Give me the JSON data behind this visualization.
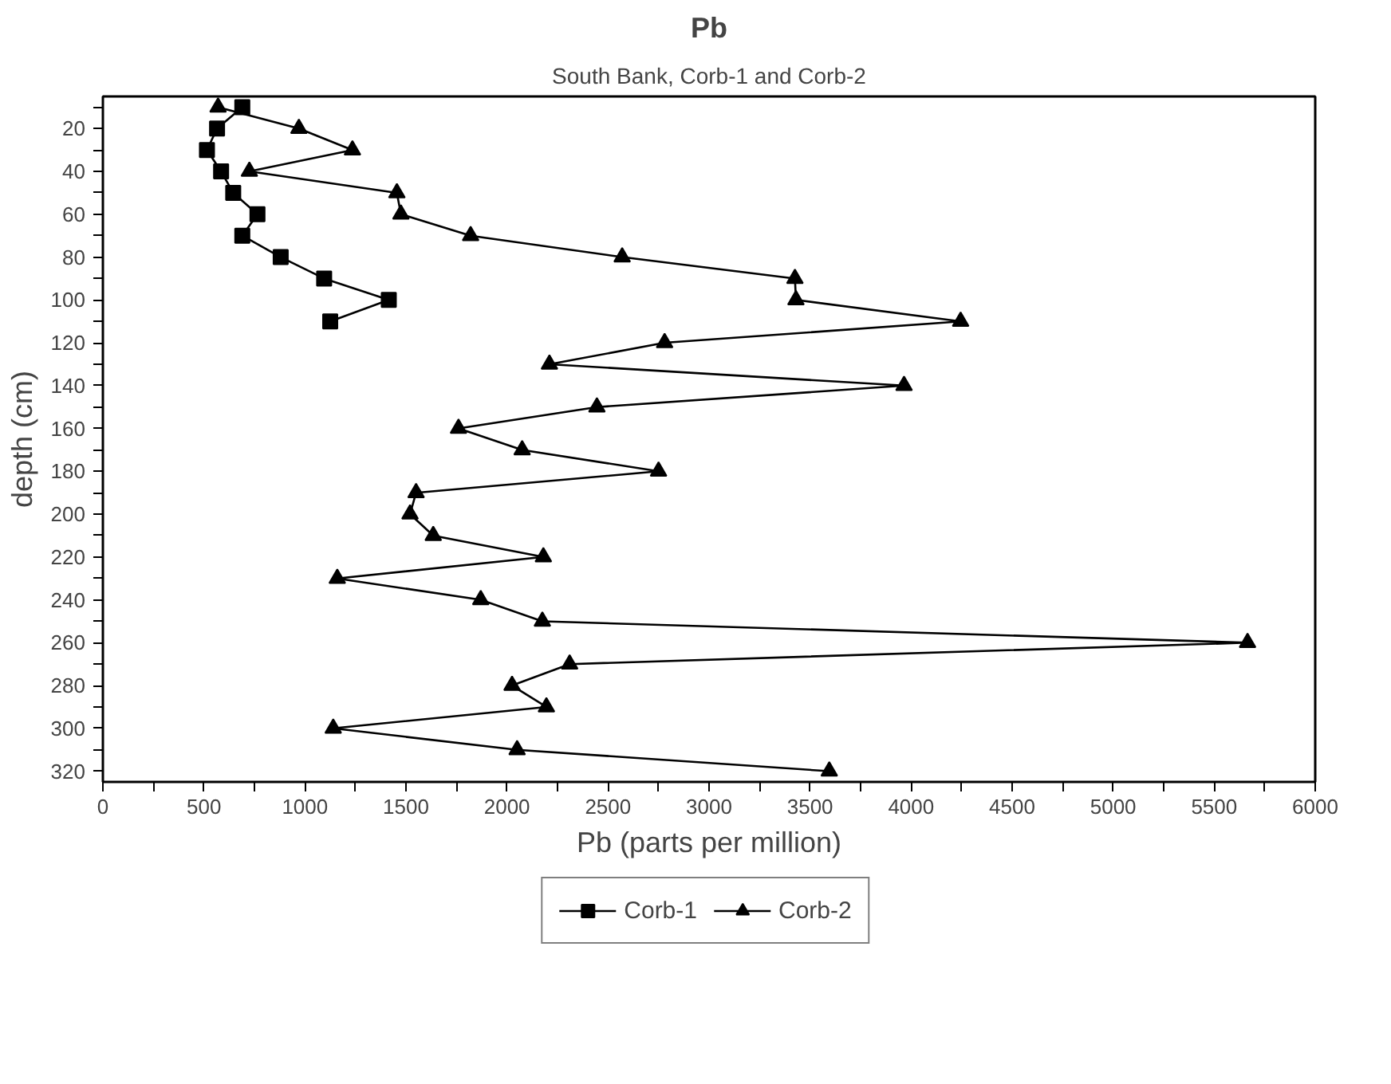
{
  "chart_data": {
    "type": "line",
    "title": "Pb",
    "subtitle": "South Bank, Corb-1 and Corb-2",
    "xlabel": "Pb (parts per million)",
    "ylabel": "depth (cm)",
    "xlim": [
      0,
      6000
    ],
    "ylim": [
      325,
      5
    ],
    "xticks": [
      0,
      {
        "value": 250,
        "label": null
      },
      500,
      {
        "value": 750,
        "label": null
      },
      1000,
      {
        "value": 1250,
        "label": null
      },
      1500,
      {
        "value": 1750,
        "label": null
      },
      2000,
      {
        "value": 2250,
        "label": null
      },
      2500,
      {
        "value": 2750,
        "label": null
      },
      3000,
      {
        "value": 3250,
        "label": null
      },
      3500,
      {
        "value": 3750,
        "label": null
      },
      4000,
      {
        "value": 4250,
        "label": null
      },
      4500,
      {
        "value": 4750,
        "label": null
      },
      5000,
      {
        "value": 5250,
        "label": null
      },
      5500,
      {
        "value": 5750,
        "label": null
      },
      6000
    ],
    "yticks": [
      {
        "value": 10,
        "label": null
      },
      20,
      {
        "value": 30,
        "label": null
      },
      40,
      {
        "value": 50,
        "label": null
      },
      60,
      {
        "value": 70,
        "label": null
      },
      80,
      {
        "value": 90,
        "label": null
      },
      100,
      {
        "value": 110,
        "label": null
      },
      120,
      {
        "value": 130,
        "label": null
      },
      140,
      {
        "value": 150,
        "label": null
      },
      160,
      {
        "value": 170,
        "label": null
      },
      180,
      {
        "value": 190,
        "label": null
      },
      200,
      {
        "value": 210,
        "label": null
      },
      220,
      {
        "value": 230,
        "label": null
      },
      240,
      {
        "value": 250,
        "label": null
      },
      260,
      {
        "value": 270,
        "label": null
      },
      280,
      {
        "value": 290,
        "label": null
      },
      300,
      {
        "value": 310,
        "label": null
      },
      320
    ],
    "grid": false,
    "legend": "bottom",
    "line_style": "solid",
    "series": [
      {
        "name": "Corb-1",
        "color": "#000000",
        "marker": "square",
        "x": [
          690,
          565,
          515,
          585,
          645,
          765,
          690,
          880,
          1095,
          1415,
          1125
        ],
        "values": [
          10,
          20,
          30,
          40,
          50,
          60,
          70,
          80,
          90,
          100,
          110
        ]
      },
      {
        "name": "Corb-2",
        "color": "#000000",
        "marker": "triangle",
        "x": [
          570,
          970,
          1235,
          725,
          1455,
          1475,
          1820,
          2570,
          3425,
          3430,
          4245,
          2780,
          2210,
          3965,
          2445,
          1760,
          2075,
          2750,
          1550,
          1520,
          1635,
          2180,
          1160,
          1870,
          2175,
          5665,
          2310,
          2025,
          2195,
          1140,
          2050,
          3595
        ],
        "values": [
          10,
          20,
          30,
          40,
          50,
          60,
          70,
          80,
          90,
          100,
          110,
          120,
          130,
          140,
          150,
          160,
          170,
          180,
          190,
          200,
          210,
          220,
          230,
          240,
          250,
          260,
          270,
          280,
          290,
          300,
          310,
          320
        ]
      }
    ]
  }
}
